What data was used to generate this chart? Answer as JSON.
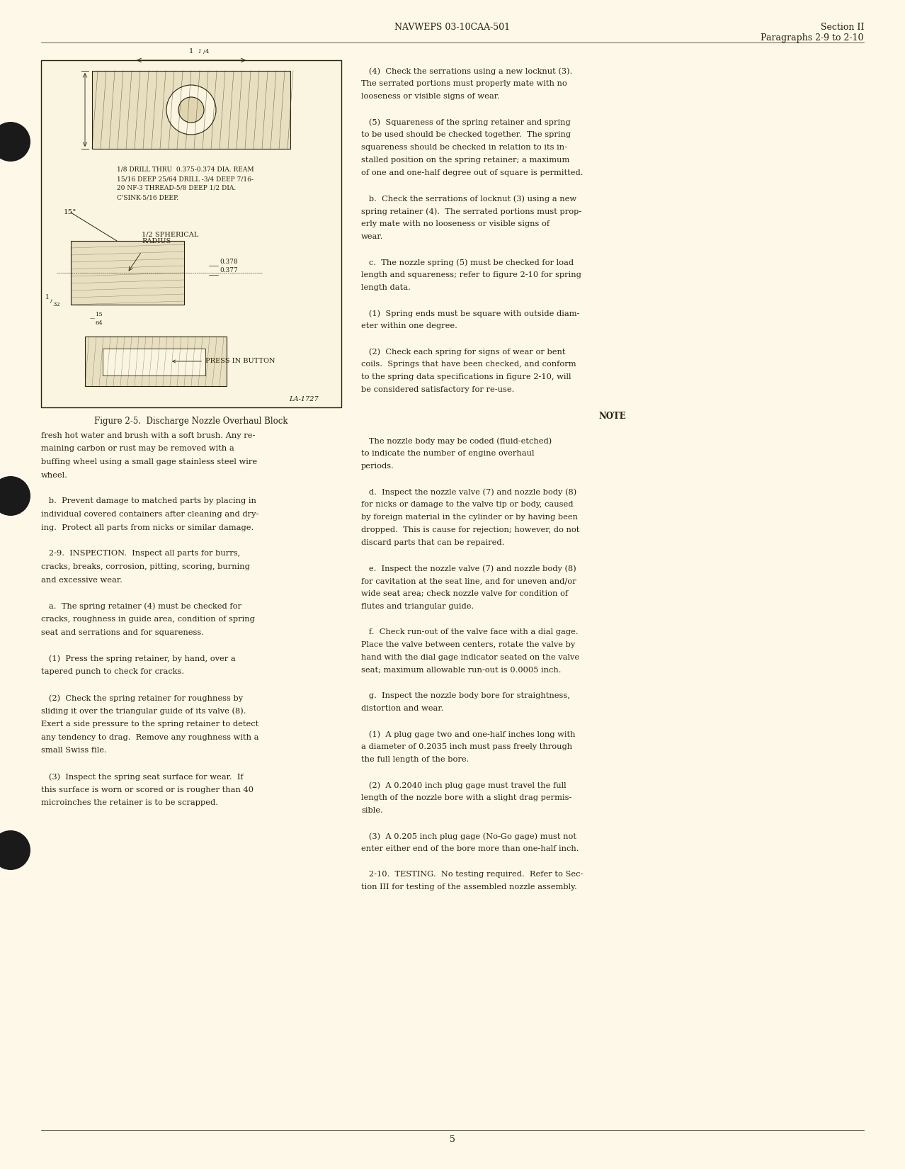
{
  "page_bg": "#fdf8e8",
  "text_color": "#2a1f0a",
  "header_center": "NAVWEPS 03-10CAA-501",
  "header_right_line1": "Section II",
  "header_right_line2": "Paragraphs 2-9 to 2-10",
  "footer_page_num": "5",
  "figure_caption": "Figure 2-5.  Discharge Nozzle Overhaul Block",
  "figure_label": "LA-1727",
  "col1_body": [
    "fresh hot water and brush with a soft brush. Any re-",
    "maining carbon or rust may be removed with a",
    "buffing wheel using a small gage stainless steel wire",
    "wheel.",
    "",
    "   b.  Prevent damage to matched parts by placing in",
    "individual covered containers after cleaning and dry-",
    "ing.  Protect all parts from nicks or similar damage.",
    "",
    "   2-9.  INSPECTION.  Inspect all parts for burrs,",
    "cracks, breaks, corrosion, pitting, scoring, burning",
    "and excessive wear.",
    "",
    "   a.  The spring retainer (4) must be checked for",
    "cracks, roughness in guide area, condition of spring",
    "seat and serrations and for squareness.",
    "",
    "   (1)  Press the spring retainer, by hand, over a",
    "tapered punch to check for cracks.",
    "",
    "   (2)  Check the spring retainer for roughness by",
    "sliding it over the triangular guide of its valve (8).",
    "Exert a side pressure to the spring retainer to detect",
    "any tendency to drag.  Remove any roughness with a",
    "small Swiss file.",
    "",
    "   (3)  Inspect the spring seat surface for wear.  If",
    "this surface is worn or scored or is rougher than 40",
    "microinches the retainer is to be scrapped."
  ],
  "col2_body": [
    "   (4)  Check the serrations using a new locknut (3).",
    "The serrated portions must properly mate with no",
    "looseness or visible signs of wear.",
    "",
    "   (5)  Squareness of the spring retainer and spring",
    "to be used should be checked together.  The spring",
    "squareness should be checked in relation to its in-",
    "stalled position on the spring retainer; a maximum",
    "of one and one-half degree out of square is permitted.",
    "",
    "   b.  Check the serrations of locknut (3) using a new",
    "spring retainer (4).  The serrated portions must prop-",
    "erly mate with no looseness or visible signs of",
    "wear.",
    "",
    "   c.  The nozzle spring (5) must be checked for load",
    "length and squareness; refer to figure 2-10 for spring",
    "length data.",
    "",
    "   (1)  Spring ends must be square with outside diam-",
    "eter within one degree.",
    "",
    "   (2)  Check each spring for signs of wear or bent",
    "coils.  Springs that have been checked, and conform",
    "to the spring data specifications in figure 2-10, will",
    "be considered satisfactory for re-use.",
    "",
    "NOTE",
    "",
    "   The nozzle body may be coded (fluid-etched)",
    "to indicate the number of engine overhaul",
    "periods.",
    "",
    "   d.  Inspect the nozzle valve (7) and nozzle body (8)",
    "for nicks or damage to the valve tip or body, caused",
    "by foreign material in the cylinder or by having been",
    "dropped.  This is cause for rejection; however, do not",
    "discard parts that can be repaired.",
    "",
    "   e.  Inspect the nozzle valve (7) and nozzle body (8)",
    "for cavitation at the seat line, and for uneven and/or",
    "wide seat area; check nozzle valve for condition of",
    "flutes and triangular guide.",
    "",
    "   f.  Check run-out of the valve face with a dial gage.",
    "Place the valve between centers, rotate the valve by",
    "hand with the dial gage indicator seated on the valve",
    "seat; maximum allowable run-out is 0.0005 inch.",
    "",
    "   g.  Inspect the nozzle body bore for straightness,",
    "distortion and wear.",
    "",
    "   (1)  A plug gage two and one-half inches long with",
    "a diameter of 0.2035 inch must pass freely through",
    "the full length of the bore.",
    "",
    "   (2)  A 0.2040 inch plug gage must travel the full",
    "length of the nozzle bore with a slight drag permis-",
    "sible.",
    "",
    "   (3)  A 0.205 inch plug gage (No-Go gage) must not",
    "enter either end of the bore more than one-half inch.",
    "",
    "   2-10.  TESTING.  No testing required.  Refer to Sec-",
    "tion III for testing of the assembled nozzle assembly."
  ],
  "note_text": [
    "The nozzle body may be coded (fluid-etched)",
    "to indicate the number of engine overhaul",
    "periods."
  ]
}
